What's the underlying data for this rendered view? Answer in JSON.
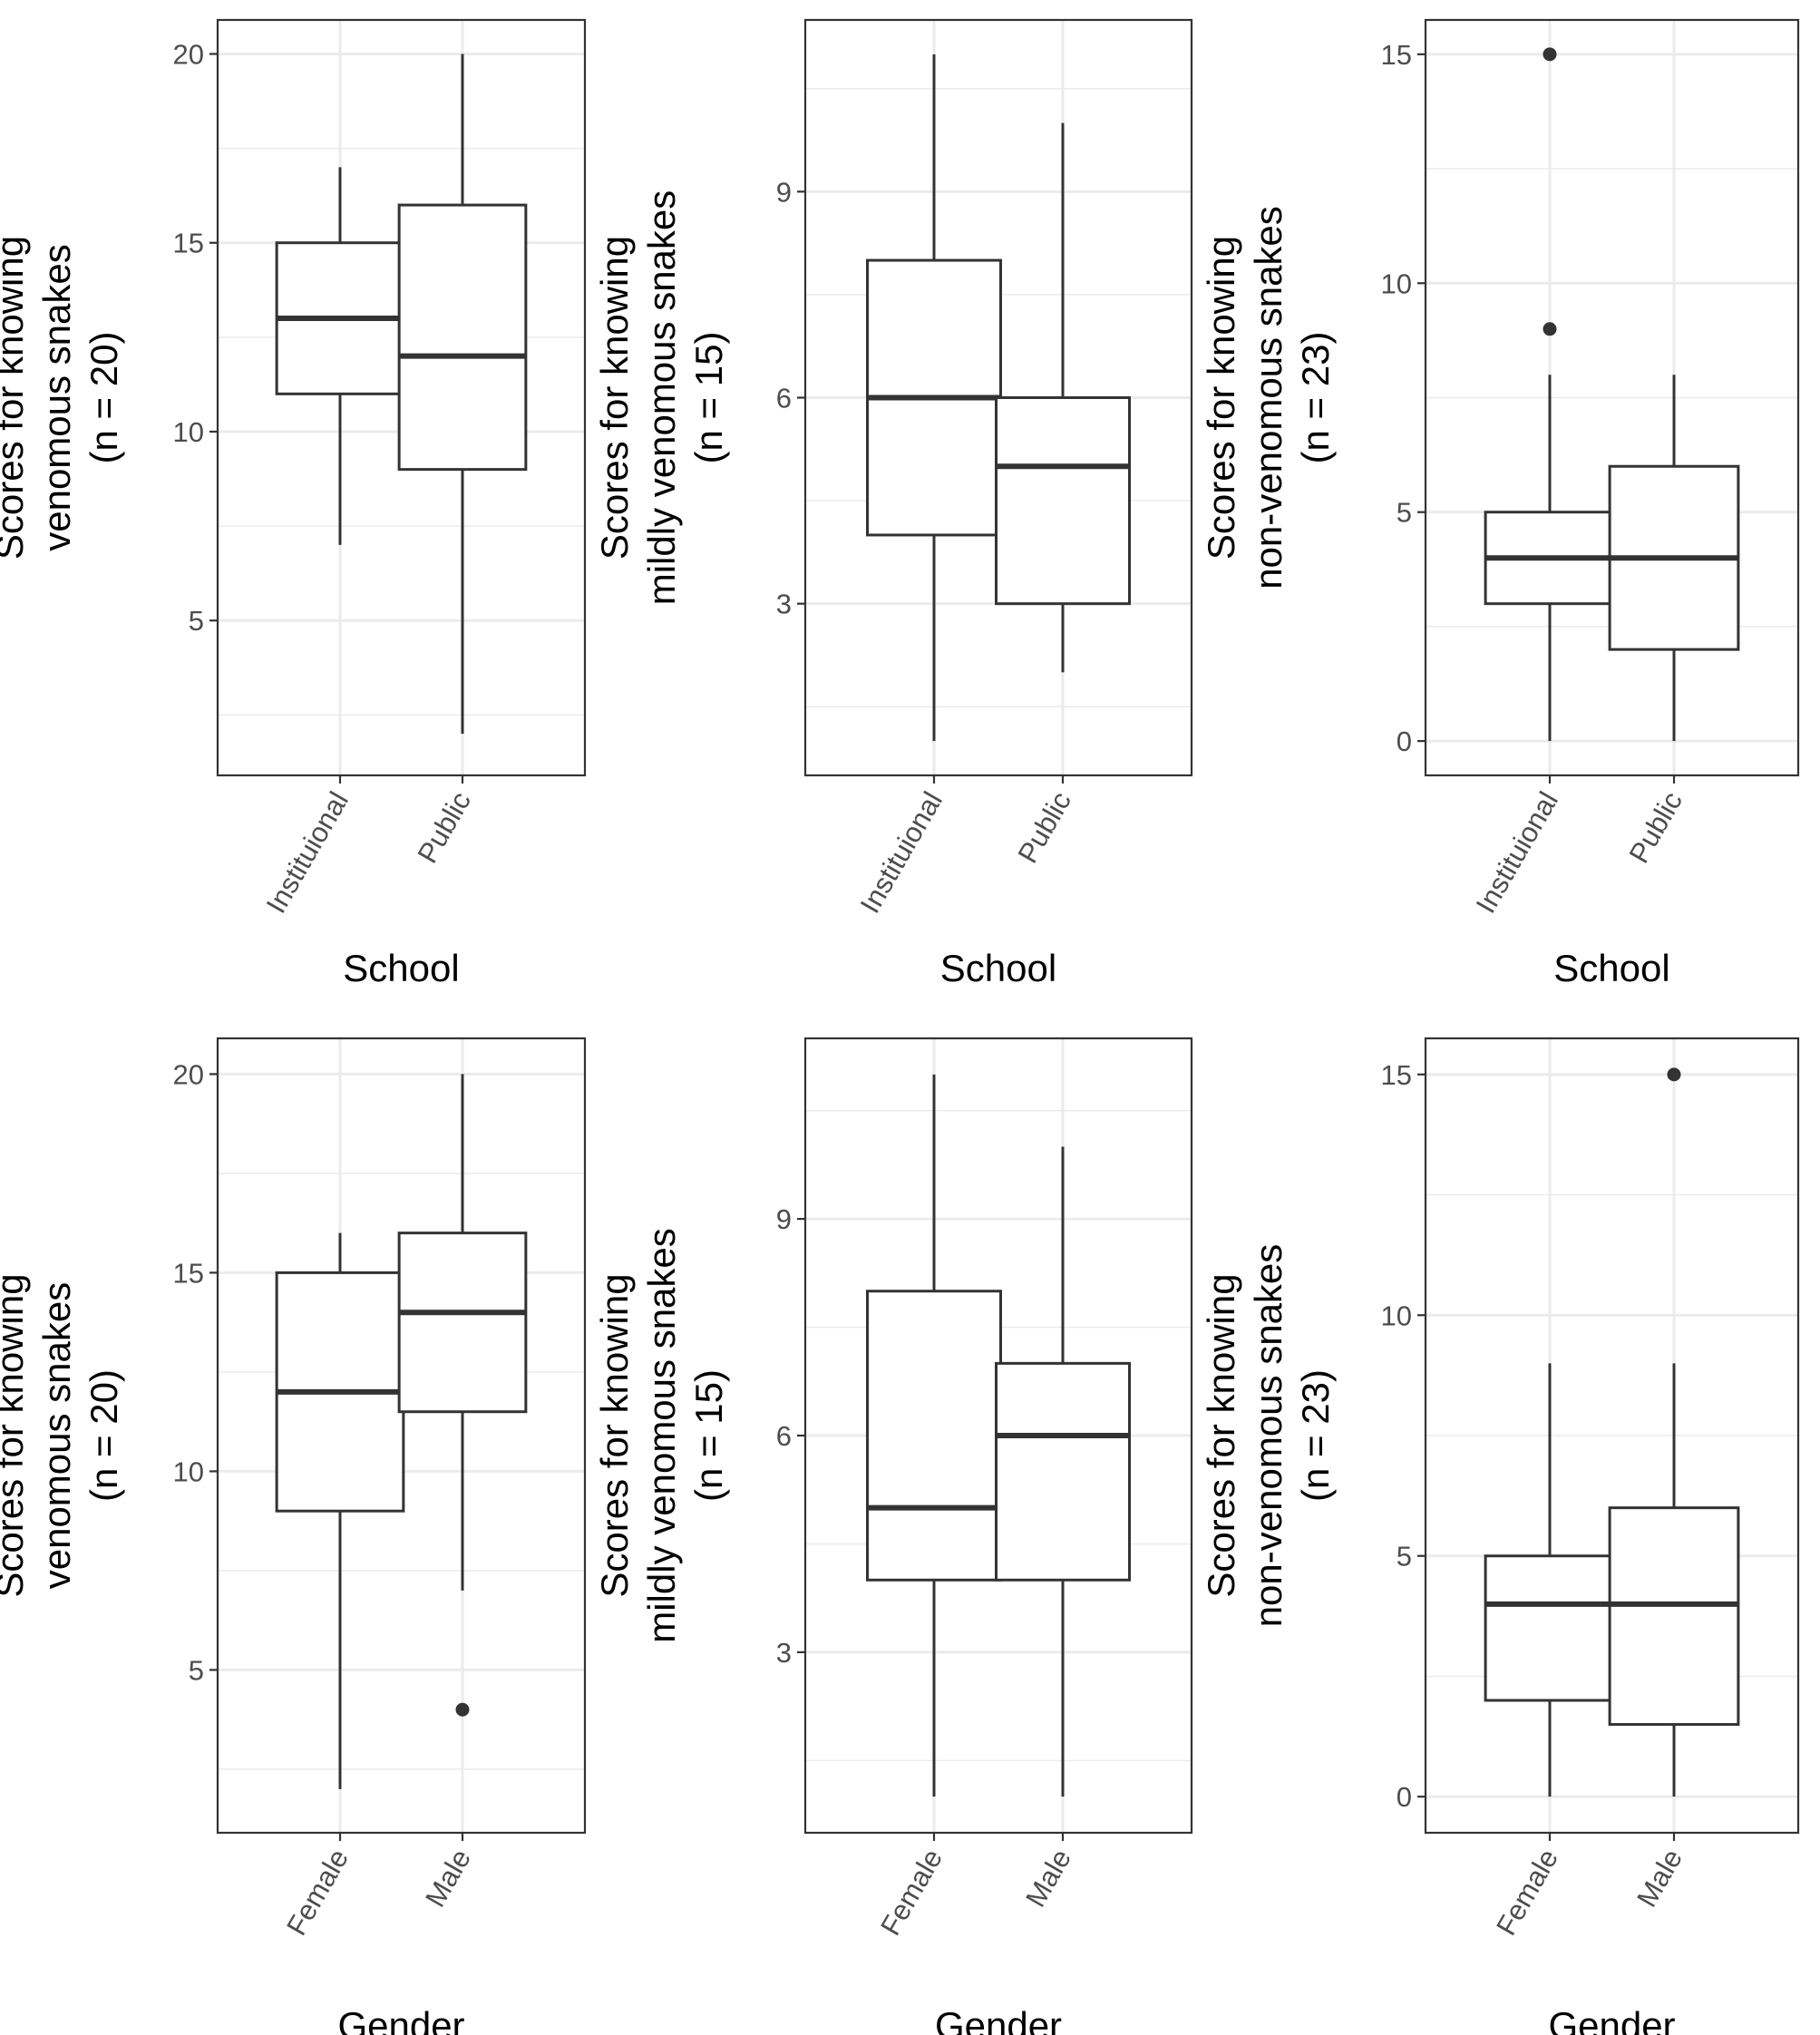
{
  "chart_data": [
    {
      "type": "boxplot",
      "xlabel": "School",
      "ylabel": [
        "Scores for knowing",
        "venomous snakes",
        "(n = 20)"
      ],
      "categories": [
        "Instituional",
        "Public"
      ],
      "ylim": [
        0.9,
        20.9
      ],
      "yticks": [
        5,
        10,
        15,
        20
      ],
      "grid": true,
      "boxes": [
        {
          "category": "Instituional",
          "whisker_low": 7,
          "q1": 11,
          "median": 13,
          "q3": 15,
          "whisker_high": 17,
          "outliers": []
        },
        {
          "category": "Public",
          "whisker_low": 2,
          "q1": 9,
          "median": 12,
          "q3": 16,
          "whisker_high": 20,
          "outliers": []
        }
      ]
    },
    {
      "type": "boxplot",
      "xlabel": "School",
      "ylabel": [
        "Scores for knowing",
        "mildly venomous snakes",
        "(n = 15)"
      ],
      "categories": [
        "Instituional",
        "Public"
      ],
      "ylim": [
        0.5,
        11.5
      ],
      "yticks": [
        3,
        6,
        9
      ],
      "grid": true,
      "boxes": [
        {
          "category": "Instituional",
          "whisker_low": 1,
          "q1": 4,
          "median": 6,
          "q3": 8,
          "whisker_high": 11,
          "outliers": []
        },
        {
          "category": "Public",
          "whisker_low": 2,
          "q1": 3,
          "median": 5,
          "q3": 6,
          "whisker_high": 10,
          "outliers": []
        }
      ]
    },
    {
      "type": "boxplot",
      "xlabel": "School",
      "ylabel": [
        "Scores for knowing",
        "non-venomous snakes",
        "(n = 23)"
      ],
      "categories": [
        "Instituional",
        "Public"
      ],
      "ylim": [
        -0.75,
        15.75
      ],
      "yticks": [
        0,
        5,
        10,
        15
      ],
      "grid": true,
      "boxes": [
        {
          "category": "Instituional",
          "whisker_low": 0,
          "q1": 3,
          "median": 4,
          "q3": 5,
          "whisker_high": 8,
          "outliers": [
            9,
            15
          ]
        },
        {
          "category": "Public",
          "whisker_low": 0,
          "q1": 2,
          "median": 4,
          "q3": 6,
          "whisker_high": 8,
          "outliers": []
        }
      ]
    },
    {
      "type": "boxplot",
      "xlabel": "Gender",
      "ylabel": [
        "Scores for knowing",
        "venomous snakes",
        "(n = 20)"
      ],
      "categories": [
        "Female",
        "Male"
      ],
      "ylim": [
        0.9,
        20.9
      ],
      "yticks": [
        5,
        10,
        15,
        20
      ],
      "grid": true,
      "boxes": [
        {
          "category": "Female",
          "whisker_low": 2,
          "q1": 9,
          "median": 12,
          "q3": 15,
          "whisker_high": 16,
          "outliers": []
        },
        {
          "category": "Male",
          "whisker_low": 7,
          "q1": 11.5,
          "median": 14,
          "q3": 16,
          "whisker_high": 20,
          "outliers": [
            4
          ]
        }
      ]
    },
    {
      "type": "boxplot",
      "xlabel": "Gender",
      "ylabel": [
        "Scores for knowing",
        "mildly venomous snakes",
        "(n = 15)"
      ],
      "categories": [
        "Female",
        "Male"
      ],
      "ylim": [
        0.5,
        11.5
      ],
      "yticks": [
        3,
        6,
        9
      ],
      "grid": true,
      "boxes": [
        {
          "category": "Female",
          "whisker_low": 1,
          "q1": 4,
          "median": 5,
          "q3": 8,
          "whisker_high": 11,
          "outliers": []
        },
        {
          "category": "Male",
          "whisker_low": 1,
          "q1": 4,
          "median": 6,
          "q3": 7,
          "whisker_high": 10,
          "outliers": []
        }
      ]
    },
    {
      "type": "boxplot",
      "xlabel": "Gender",
      "ylabel": [
        "Scores for knowing",
        "non-venomous snakes",
        "(n = 23)"
      ],
      "categories": [
        "Female",
        "Male"
      ],
      "ylim": [
        -0.75,
        15.75
      ],
      "yticks": [
        0,
        5,
        10,
        15
      ],
      "grid": true,
      "boxes": [
        {
          "category": "Female",
          "whisker_low": 0,
          "q1": 2,
          "median": 4,
          "q3": 5,
          "whisker_high": 9,
          "outliers": []
        },
        {
          "category": "Male",
          "whisker_low": 0,
          "q1": 1.5,
          "median": 4,
          "q3": 6,
          "whisker_high": 9,
          "outliers": [
            15
          ]
        }
      ]
    }
  ]
}
